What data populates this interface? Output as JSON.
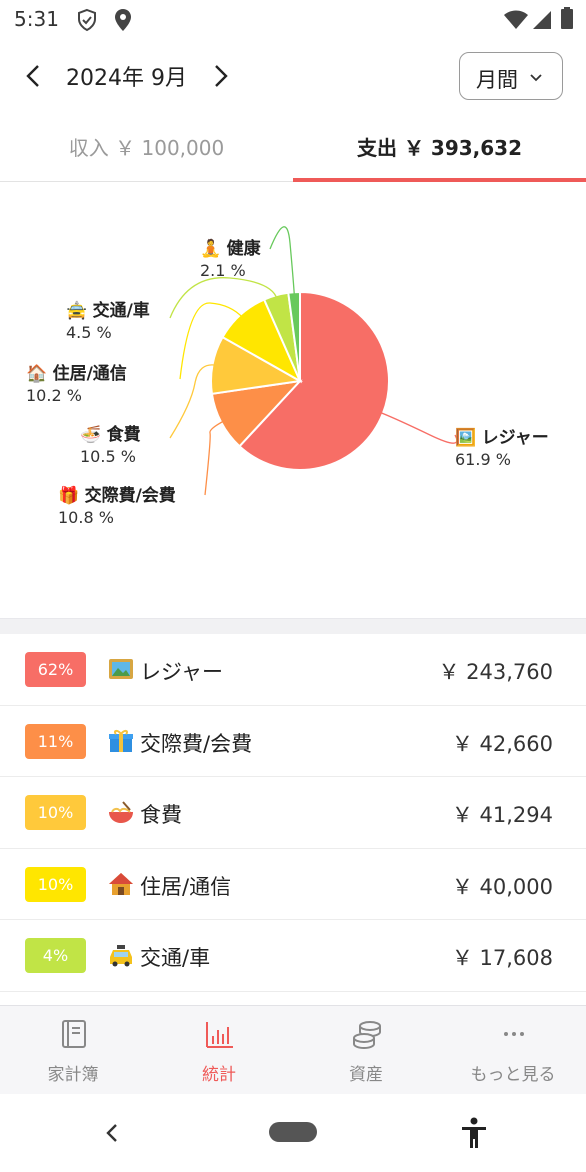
{
  "status_bar": {
    "time": "5:31",
    "icons": [
      "shield-check-icon",
      "location-icon",
      "wifi-icon",
      "signal-icon",
      "battery-icon"
    ]
  },
  "header": {
    "month": "2024年 9月",
    "period": "月間",
    "prev_icon": "chevron-left-icon",
    "next_icon": "chevron-right-icon"
  },
  "tabs": {
    "income": "収入 ￥ 100,000",
    "expense": "支出 ￥ 393,632",
    "active": "expense"
  },
  "chart_data": {
    "type": "pie",
    "title": "",
    "slices": [
      {
        "label": "レジャー",
        "percent": 61.9,
        "percent_text": "61.9 %",
        "color": "#f76e66",
        "icon": "picture-frame-icon"
      },
      {
        "label": "交際費/会費",
        "percent": 10.8,
        "percent_text": "10.8 %",
        "color": "#fd8f48",
        "icon": "gift-icon"
      },
      {
        "label": "食費",
        "percent": 10.5,
        "percent_text": "10.5 %",
        "color": "#ffc93b",
        "icon": "noodle-bowl-icon"
      },
      {
        "label": "住居/通信",
        "percent": 10.2,
        "percent_text": "10.2 %",
        "color": "#ffe600",
        "icon": "house-icon"
      },
      {
        "label": "交通/車",
        "percent": 4.5,
        "percent_text": "4.5 %",
        "color": "#c1e446",
        "icon": "taxi-icon"
      },
      {
        "label": "健康",
        "percent": 2.1,
        "percent_text": "2.1 %",
        "color": "#68c95c",
        "icon": "meditation-icon"
      }
    ]
  },
  "list": [
    {
      "badge": "62%",
      "name": "レジャー",
      "amount": "￥ 243,760",
      "color": "#f76e66",
      "icon": "picture-frame-icon"
    },
    {
      "badge": "11%",
      "name": "交際費/会費",
      "amount": "￥ 42,660",
      "color": "#fd8f48",
      "icon": "gift-icon"
    },
    {
      "badge": "10%",
      "name": "食費",
      "amount": "￥ 41,294",
      "color": "#ffc93b",
      "icon": "noodle-bowl-icon"
    },
    {
      "badge": "10%",
      "name": "住居/通信",
      "amount": "￥ 40,000",
      "color": "#ffe600",
      "icon": "house-icon"
    },
    {
      "badge": "4%",
      "name": "交通/車",
      "amount": "￥ 17,608",
      "color": "#c1e446",
      "icon": "taxi-icon"
    }
  ],
  "bottom_nav": [
    {
      "label": "家計簿",
      "icon": "book-icon",
      "active": false
    },
    {
      "label": "統計",
      "icon": "bar-chart-icon",
      "active": true
    },
    {
      "label": "資産",
      "icon": "coins-icon",
      "active": false
    },
    {
      "label": "もっと見る",
      "icon": "more-dots-icon",
      "active": false
    }
  ],
  "system_nav": {
    "back": "back-icon",
    "home": "home-pill-icon",
    "accessibility": "accessibility-icon"
  }
}
